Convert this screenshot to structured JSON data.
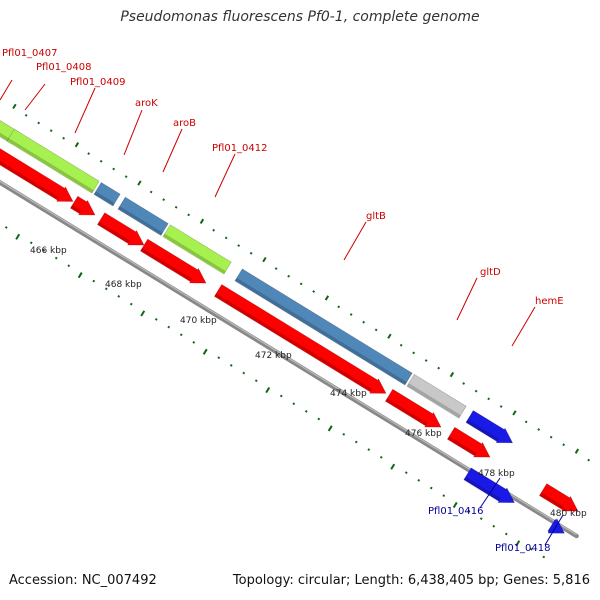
{
  "title": "Pseudomonas fluorescens Pf0-1, complete genome",
  "footer": {
    "accession": "Accession: NC_007492",
    "summary": "Topology: circular; Length: 6,438,405 bp; Genes: 5,816"
  },
  "colors": {
    "label_red": "#cc0000",
    "label_blue": "#000099",
    "tick_green": "#116611",
    "backbone_gray": "#888888",
    "gene_green": "#a6f050",
    "gene_steel": "#4f87b8",
    "gene_gray": "#c8c8c8",
    "gene_red": "#ff0000",
    "gene_blue": "#1a1ae6"
  },
  "ruler_labels": [
    "466 kbp",
    "468 kbp",
    "470 kbp",
    "472 kbp",
    "474 kbp",
    "476 kbp",
    "478 kbp",
    "480 kbp"
  ],
  "gene_labels": [
    {
      "text": "Pfl01_0407",
      "strand": "plus"
    },
    {
      "text": "Pfl01_0408",
      "strand": "plus"
    },
    {
      "text": "Pfl01_0409",
      "strand": "plus"
    },
    {
      "text": "aroK",
      "strand": "plus"
    },
    {
      "text": "aroB",
      "strand": "plus"
    },
    {
      "text": "Pfl01_0412",
      "strand": "plus"
    },
    {
      "text": "gltB",
      "strand": "plus"
    },
    {
      "text": "gltD",
      "strand": "plus"
    },
    {
      "text": "hemE",
      "strand": "plus"
    },
    {
      "text": "Pfl01_0416",
      "strand": "minus"
    },
    {
      "text": "Pfl01_0418",
      "strand": "minus"
    }
  ]
}
